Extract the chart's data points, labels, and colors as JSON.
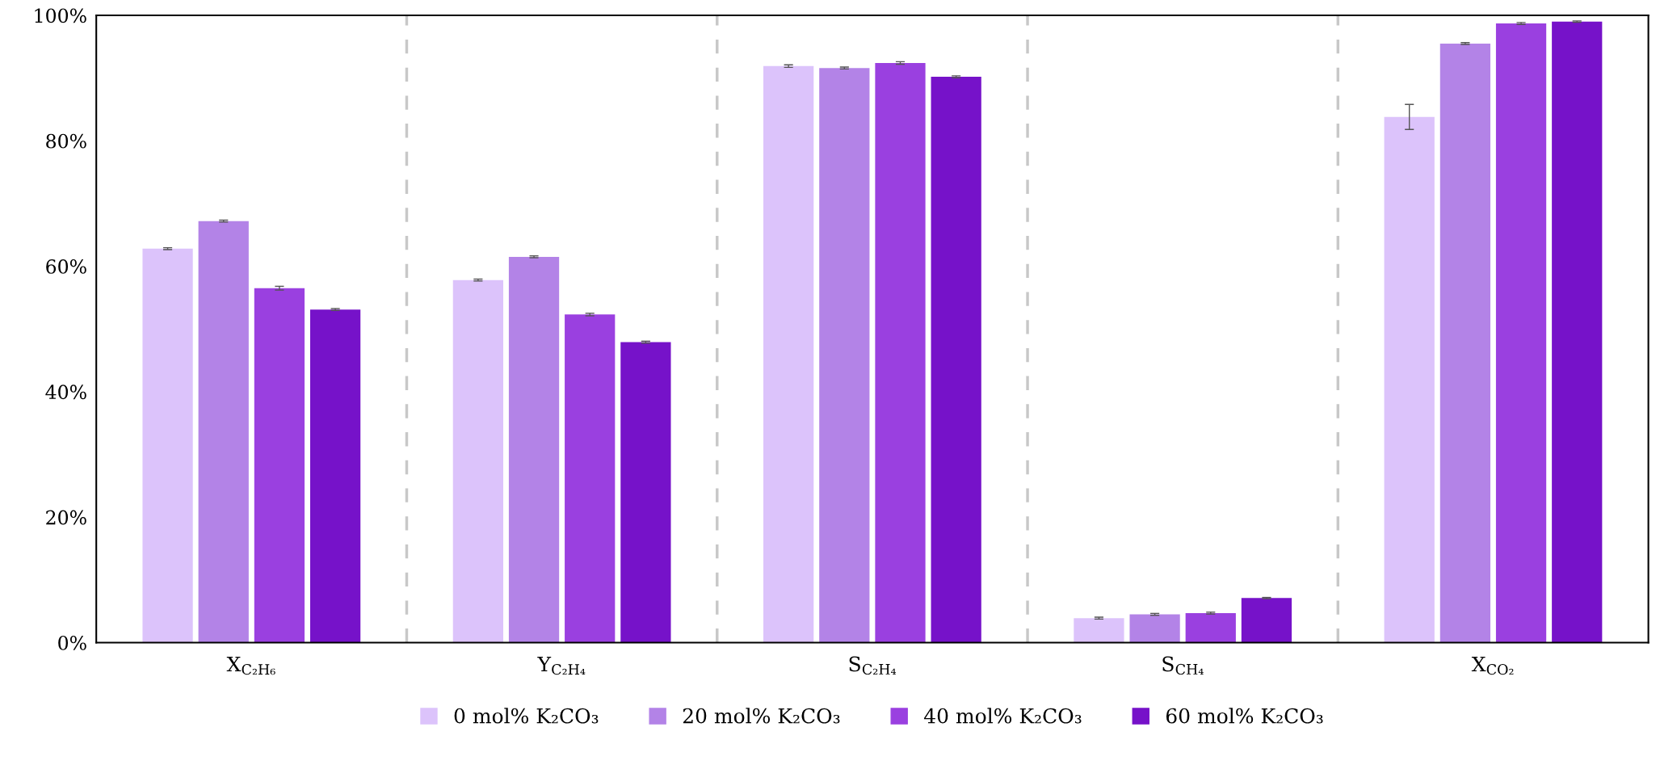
{
  "chart_data": {
    "type": "bar",
    "categories": [
      "X$_{C₂H₆}$",
      "Y$_{C₂H₄}$",
      "S$_{C₂H₄}$",
      "S$_{CH₄}$",
      "X$_{CO₂}$"
    ],
    "series": [
      {
        "name": "0 mol% K₂CO₃",
        "color": "#dcc3fb",
        "values": [
          62.8,
          57.8,
          91.9,
          3.9,
          83.8
        ],
        "errors": [
          0.15,
          0.15,
          0.2,
          0.15,
          2.0
        ]
      },
      {
        "name": "20 mol% K₂CO₃",
        "color": "#b383e7",
        "values": [
          67.2,
          61.5,
          91.6,
          4.5,
          95.5
        ],
        "errors": [
          0.15,
          0.15,
          0.15,
          0.15,
          0.15
        ]
      },
      {
        "name": "40 mol% K₂CO₃",
        "color": "#9a40e0",
        "values": [
          56.5,
          52.3,
          92.4,
          4.7,
          98.7
        ],
        "errors": [
          0.3,
          0.2,
          0.2,
          0.15,
          0.15
        ]
      },
      {
        "name": "60 mol% K₂CO₃",
        "color": "#7612c9",
        "values": [
          53.1,
          47.9,
          90.2,
          7.1,
          99.0
        ],
        "errors": [
          0.15,
          0.15,
          0.15,
          0.1,
          0.1
        ]
      }
    ],
    "ylim": [
      0,
      100
    ],
    "yticks": [
      {
        "value": 0,
        "label": "0%"
      },
      {
        "value": 20,
        "label": "20%"
      },
      {
        "value": 40,
        "label": "40%"
      },
      {
        "value": 60,
        "label": "60%"
      },
      {
        "value": 80,
        "label": "80%"
      },
      {
        "value": 100,
        "label": "100%"
      }
    ],
    "grid": false,
    "legend": "bottom"
  }
}
